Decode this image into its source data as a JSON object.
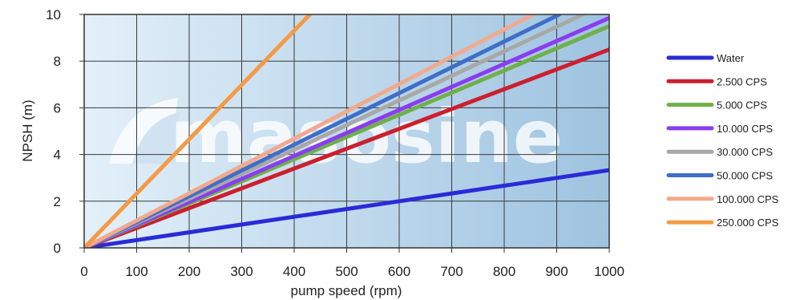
{
  "chart_data": {
    "type": "line",
    "title": "",
    "xlabel": "pump speed (rpm)",
    "ylabel": "NPSH (m)",
    "xlim": [
      0,
      1000
    ],
    "ylim": [
      0,
      10
    ],
    "x_ticks": [
      0,
      100,
      200,
      300,
      400,
      500,
      600,
      700,
      800,
      900,
      1000
    ],
    "y_ticks": [
      0,
      2,
      4,
      6,
      8,
      10
    ],
    "grid": true,
    "legend": "right",
    "watermark": "masosine",
    "series": [
      {
        "name": "Water",
        "color": "#2a2ad8",
        "x": [
          0,
          1000
        ],
        "y": [
          0,
          3.33
        ]
      },
      {
        "name": "2.500 CPS",
        "color": "#cc1f2e",
        "x": [
          0,
          1000
        ],
        "y": [
          0,
          8.5
        ]
      },
      {
        "name": "5.000 CPS",
        "color": "#6fb04a",
        "x": [
          0,
          1000
        ],
        "y": [
          0,
          9.5
        ]
      },
      {
        "name": "10.000 CPS",
        "color": "#8a3cf0",
        "x": [
          0,
          1000
        ],
        "y": [
          0,
          9.85
        ]
      },
      {
        "name": "30.000 CPS",
        "color": "#a8a8a8",
        "x": [
          0,
          950
        ],
        "y": [
          0,
          10
        ]
      },
      {
        "name": "50.000 CPS",
        "color": "#3f6ec8",
        "x": [
          0,
          905
        ],
        "y": [
          0,
          10
        ]
      },
      {
        "name": "100.000 CPS",
        "color": "#f2a98e",
        "x": [
          0,
          855
        ],
        "y": [
          0,
          10
        ]
      },
      {
        "name": "250.000 CPS",
        "color": "#f59a45",
        "x": [
          0,
          430
        ],
        "y": [
          0,
          10
        ]
      }
    ]
  }
}
